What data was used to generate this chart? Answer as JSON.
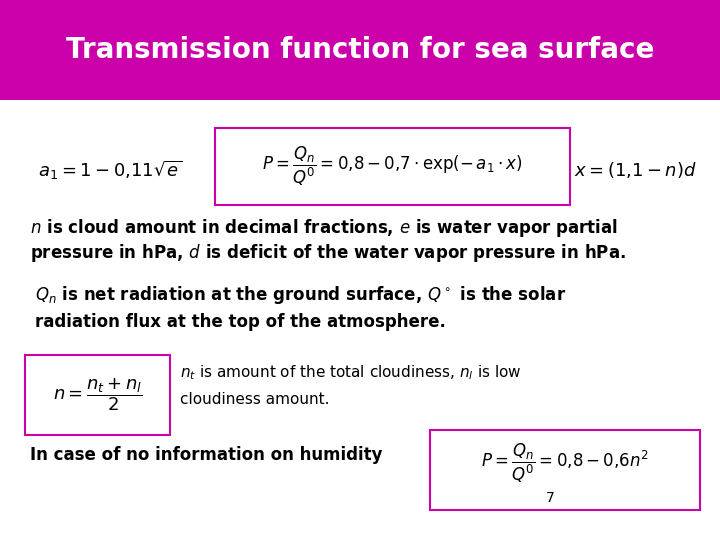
{
  "title": "Transmission function for sea surface",
  "title_bg_color": "#CC00AA",
  "title_text_color": "#FFFFFF",
  "slide_bg_color": "#FFFFFF",
  "box_border_color": "#CC00AA",
  "formula1_left": "$a_1 = 1 - 0{,}11\\sqrt{e}$",
  "formula1_center": "$P = \\dfrac{Q_n}{Q^0} = 0{,}8 - 0{,}7 \\cdot \\exp(-\\,a_1 \\cdot x)$",
  "formula1_right": "$x = (1{,}1 - n)d$",
  "text_line1": "$n$ is cloud amount in decimal fractions, $e$ is water vapor partial",
  "text_line2": "pressure in hPa, $d$ is deficit of the water vapor pressure in hPa.",
  "text_line3": "$Q_n$ is net radiation at the ground surface, $Q^\\circ$ is the solar",
  "text_line4": "radiation flux at the top of the atmosphere.",
  "formula_n": "$n = \\dfrac{n_t + n_l}{2}$",
  "note_line1": "$n_t$ is amount of the total cloudiness, $n_l$ is low",
  "note_line2": "cloudiness amount.",
  "label_humidity": "In case of no information on humidity",
  "formula_humidity": "$P = \\dfrac{Q_n}{Q^0} = 0{,}8 - 0{,}6n^2$",
  "footnote": "7"
}
